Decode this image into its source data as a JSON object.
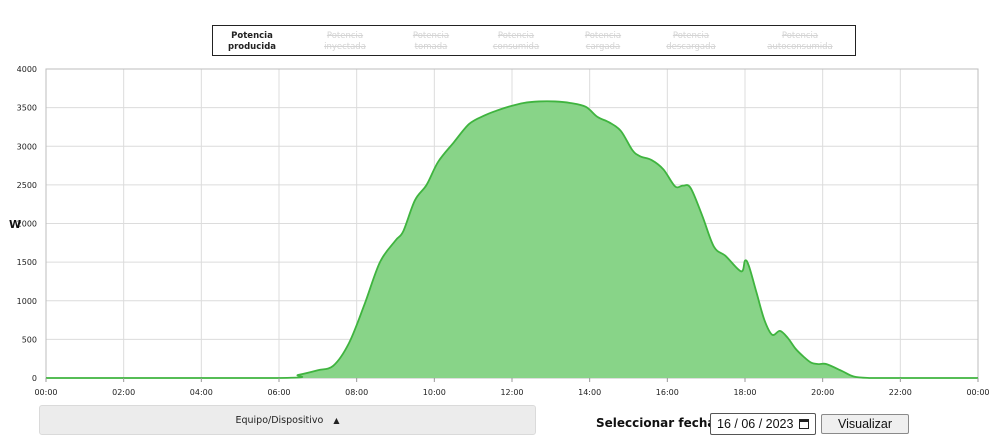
{
  "legend": {
    "items": [
      {
        "label": "Potencia\nproducida",
        "active": true
      },
      {
        "label": "Potencia\ninyectada",
        "active": false
      },
      {
        "label": "Potencia\ntomada",
        "active": false
      },
      {
        "label": "Potencia\nconsumida",
        "active": false
      },
      {
        "label": "Potencia\ncargada",
        "active": false
      },
      {
        "label": "Potencia\ndescargada",
        "active": false
      },
      {
        "label": "Potencia\nautoconsumida",
        "active": false
      }
    ]
  },
  "chart_data": {
    "type": "area",
    "ylabel": "W",
    "xlabel": "",
    "title": "",
    "ylim": [
      0,
      4000
    ],
    "yticks": [
      0,
      500,
      1000,
      1500,
      2000,
      2500,
      3000,
      3500,
      4000
    ],
    "xlim": [
      0,
      24
    ],
    "xticks": [
      {
        "v": 0,
        "label": "00:00"
      },
      {
        "v": 2,
        "label": "02:00"
      },
      {
        "v": 4,
        "label": "04:00"
      },
      {
        "v": 6,
        "label": "06:00"
      },
      {
        "v": 8,
        "label": "08:00"
      },
      {
        "v": 10,
        "label": "10:00"
      },
      {
        "v": 12,
        "label": "12:00"
      },
      {
        "v": 14,
        "label": "14:00"
      },
      {
        "v": 16,
        "label": "16:00"
      },
      {
        "v": 18,
        "label": "18:00"
      },
      {
        "v": 20,
        "label": "20:00"
      },
      {
        "v": 22,
        "label": "22:00"
      },
      {
        "v": 24,
        "label": "00:00"
      }
    ],
    "grid": true,
    "colors": {
      "fill": "#88d488",
      "line": "#3fb43f"
    },
    "series": [
      {
        "name": "Potencia producida",
        "x": [
          0,
          6.0,
          6.5,
          7.0,
          7.4,
          7.8,
          8.2,
          8.6,
          9.0,
          9.2,
          9.5,
          9.8,
          10.1,
          10.5,
          10.9,
          11.3,
          11.6,
          11.9,
          12.3,
          12.7,
          13.1,
          13.5,
          13.9,
          14.2,
          14.5,
          14.8,
          15.1,
          15.3,
          15.6,
          15.9,
          16.2,
          16.4,
          16.6,
          16.9,
          17.2,
          17.5,
          17.9,
          18.0,
          18.1,
          18.3,
          18.5,
          18.7,
          18.9,
          19.1,
          19.3,
          19.5,
          19.7,
          19.9,
          20.1,
          20.5,
          20.8,
          21.2,
          21.6,
          22.0,
          24.0
        ],
        "y": [
          0,
          0,
          40,
          100,
          160,
          450,
          950,
          1500,
          1780,
          1900,
          2300,
          2500,
          2800,
          3050,
          3290,
          3400,
          3460,
          3510,
          3560,
          3580,
          3580,
          3560,
          3510,
          3380,
          3310,
          3200,
          2950,
          2870,
          2820,
          2700,
          2480,
          2490,
          2460,
          2100,
          1700,
          1580,
          1380,
          1520,
          1450,
          1100,
          750,
          560,
          610,
          520,
          380,
          280,
          200,
          180,
          180,
          90,
          20,
          0,
          0,
          0,
          0
        ]
      }
    ]
  },
  "footer": {
    "device_label": "Equipo/Dispositivo",
    "device_caret": "▲",
    "date_label": "Seleccionar fecha",
    "date_value": "16 / 06 / 2023",
    "view_button": "Visualizar"
  }
}
